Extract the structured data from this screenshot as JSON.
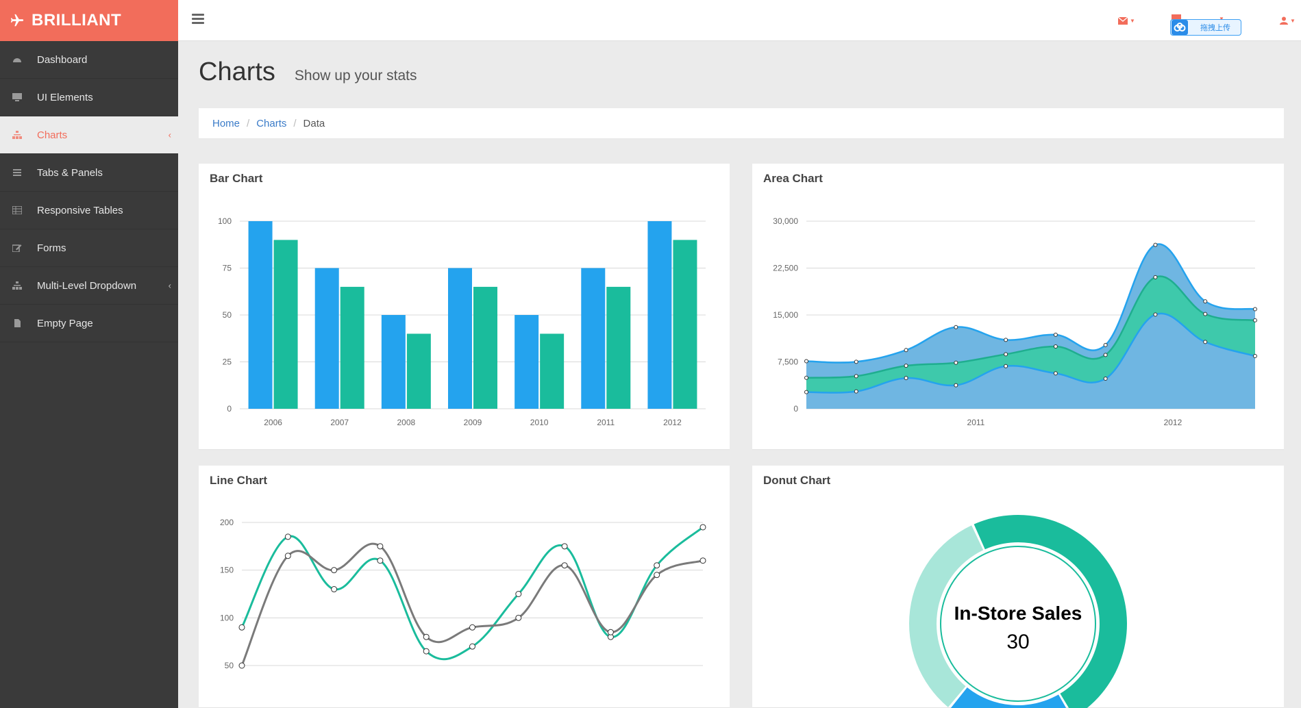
{
  "app": {
    "brand": "BRILLIANT"
  },
  "sidebar": {
    "items": [
      {
        "label": "Dashboard",
        "icon": "dashboard-icon"
      },
      {
        "label": "UI Elements",
        "icon": "desktop-icon"
      },
      {
        "label": "Charts",
        "icon": "sitemap-icon",
        "active": true,
        "caret": "‹"
      },
      {
        "label": "Tabs & Panels",
        "icon": "list-icon"
      },
      {
        "label": "Responsive Tables",
        "icon": "table-icon"
      },
      {
        "label": "Forms",
        "icon": "edit-icon"
      },
      {
        "label": "Multi-Level Dropdown",
        "icon": "sitemap-icon",
        "caret": "‹"
      },
      {
        "label": "Empty Page",
        "icon": "file-icon"
      }
    ]
  },
  "topbar": {
    "upload_label": "拖拽上传"
  },
  "header": {
    "title": "Charts",
    "subtitle": "Show up your stats"
  },
  "breadcrumb": {
    "home": "Home",
    "section": "Charts",
    "current": "Data"
  },
  "colors": {
    "brand": "#f26d5b",
    "blue": "#24a3ee",
    "green": "#1abc9c",
    "gray": "#7a7a7a",
    "sidebar": "#3a3a3a"
  },
  "panels": {
    "bar": {
      "title": "Bar Chart"
    },
    "area": {
      "title": "Area Chart"
    },
    "line": {
      "title": "Line Chart"
    },
    "donut": {
      "title": "Donut Chart"
    }
  },
  "chart_data": [
    {
      "type": "bar",
      "categories": [
        "2006",
        "2007",
        "2008",
        "2009",
        "2010",
        "2011",
        "2012"
      ],
      "series": [
        {
          "values": [
            100,
            75,
            50,
            75,
            50,
            75,
            100
          ]
        },
        {
          "values": [
            90,
            65,
            40,
            65,
            40,
            65,
            90
          ]
        }
      ],
      "yticks": [
        "0",
        "25",
        "50",
        "75",
        "100"
      ],
      "ylim": [
        0,
        100
      ],
      "grid": true
    },
    {
      "type": "area",
      "xticks": [
        "2011",
        "2012"
      ],
      "yticks": [
        "0",
        "7,500",
        "15,000",
        "22,500",
        "30,000"
      ],
      "ylim": [
        0,
        30000
      ],
      "x": [
        0,
        1,
        2,
        3,
        4,
        5,
        6,
        7,
        8,
        9
      ],
      "series": [
        {
          "values": [
            2666,
            2778,
            4912,
            3767,
            6810,
            5670,
            4820,
            15073,
            10687,
            8432
          ]
        },
        {
          "values": [
            2294,
            2441,
            1969,
            3597,
            1914,
            4293,
            3795,
            5967,
            4460,
            5713
          ]
        },
        {
          "values": [
            2647,
            2294,
            2501,
            5689,
            2293,
            1881,
            1588,
            5175,
            2028,
            1791
          ]
        }
      ],
      "stacked": true,
      "grid": true
    },
    {
      "type": "line",
      "yticks": [
        "50",
        "100",
        "150",
        "200"
      ],
      "ylim": [
        50,
        200
      ],
      "x": [
        0,
        1,
        2,
        3,
        4,
        5,
        6,
        7,
        8,
        9,
        10
      ],
      "series": [
        {
          "values": [
            90,
            185,
            130,
            160,
            65,
            70,
            125,
            175,
            80,
            155,
            195
          ]
        },
        {
          "values": [
            50,
            165,
            150,
            175,
            80,
            90,
            100,
            155,
            85,
            145,
            160
          ]
        }
      ],
      "grid": true
    },
    {
      "type": "pie",
      "donut": true,
      "center_label": "In-Store Sales",
      "center_value": "30",
      "segments": [
        {
          "label": "In-Store Sales",
          "value": 30
        },
        {
          "value": 12
        },
        {
          "value": 20
        }
      ]
    }
  ]
}
